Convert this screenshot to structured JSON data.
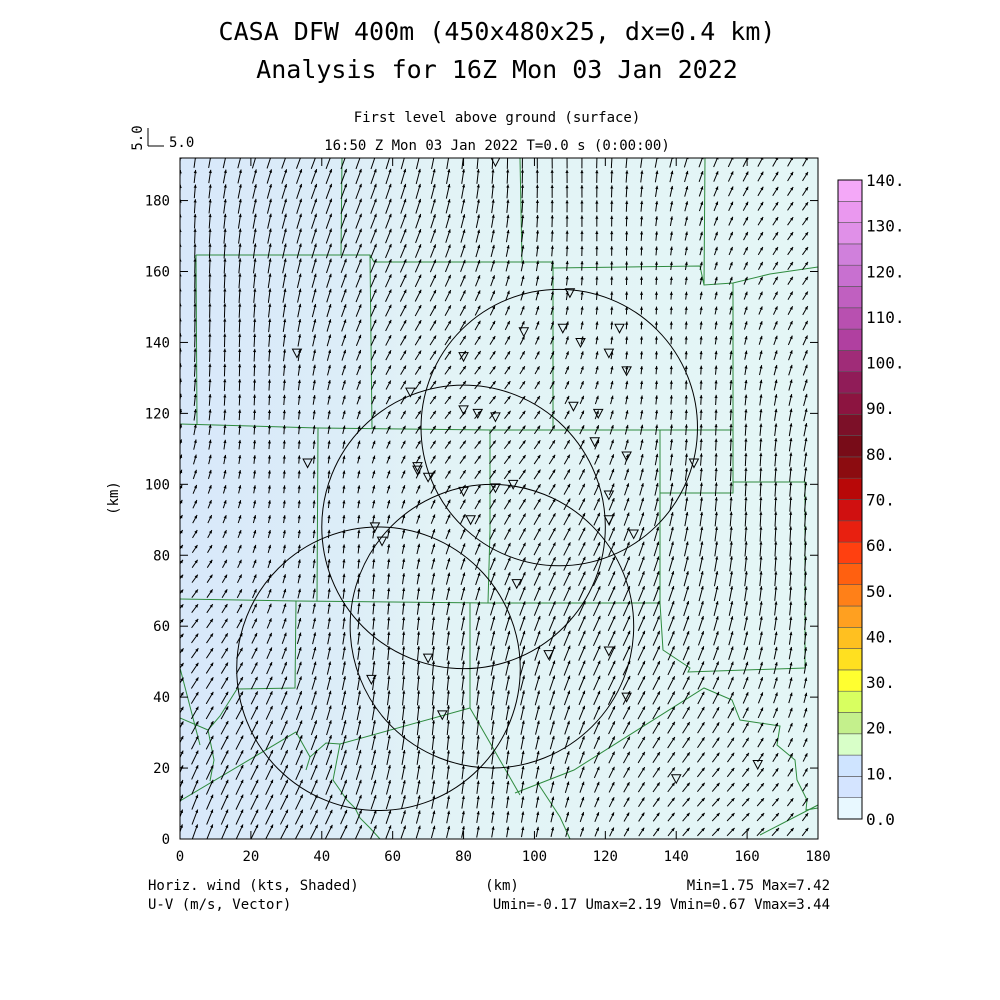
{
  "titles": {
    "line1": "CASA DFW 400m (450x480x25, dx=0.4 km)",
    "line2": "Analysis for 16Z Mon 03 Jan 2022",
    "level": "First level above ground (surface)",
    "time": "16:50 Z Mon 03 Jan 2022    T=0.0 s (0:00:00)"
  },
  "vector_key": {
    "vertical_label": "5.0",
    "horizontal_label": "5.0"
  },
  "axes": {
    "x_label": "(km)",
    "y_label": "(km)",
    "x_range": [
      0,
      180
    ],
    "y_range": [
      0,
      192
    ],
    "x_ticks": [
      "0",
      "20",
      "40",
      "60",
      "80",
      "100",
      "120",
      "140",
      "160",
      "180"
    ],
    "y_ticks": [
      "0",
      "20",
      "40",
      "60",
      "80",
      "100",
      "120",
      "140",
      "160",
      "180"
    ]
  },
  "colorbar": {
    "labels": [
      "0.0",
      "10.",
      "20.",
      "30.",
      "40.",
      "50.",
      "60.",
      "70.",
      "80.",
      "90.",
      "100.",
      "110.",
      "120.",
      "130.",
      "140."
    ],
    "colors": [
      "#e8f8ff",
      "#d4e4ff",
      "#cfe4ff",
      "#d8ffc8",
      "#c4f08c",
      "#d8ff60",
      "#ffff30",
      "#ffe020",
      "#ffc020",
      "#ffa020",
      "#ff8018",
      "#ff6010",
      "#ff4010",
      "#e82010",
      "#d01010",
      "#b80808",
      "#8c0c10",
      "#780c18",
      "#7c1028",
      "#8c1440",
      "#901c58",
      "#a02c78",
      "#b040a0",
      "#b850b0",
      "#c060c0",
      "#c870d0",
      "#d080dc",
      "#e090e8",
      "#ea98ef",
      "#f4a8f8"
    ]
  },
  "footer": {
    "left1": "Horiz. wind (kts, Shaded)",
    "left2": "U-V (m/s, Vector)",
    "center": "(km)",
    "right1": "Min=1.75 Max=7.42",
    "right2": "Umin=-0.17 Umax=2.19 Vmin=0.67 Vmax=3.44"
  },
  "radars": [
    {
      "center_km": [
        107,
        116
      ],
      "radius_km": 39
    },
    {
      "center_km": [
        80,
        88
      ],
      "radius_km": 40
    },
    {
      "center_km": [
        88,
        60
      ],
      "radius_km": 40
    },
    {
      "center_km": [
        56,
        48
      ],
      "radius_km": 40
    }
  ],
  "stations_km": [
    [
      89,
      191
    ],
    [
      110,
      154
    ],
    [
      108,
      144
    ],
    [
      97,
      143
    ],
    [
      124,
      144
    ],
    [
      113,
      140
    ],
    [
      33,
      137
    ],
    [
      80,
      136
    ],
    [
      121,
      137
    ],
    [
      126,
      132
    ],
    [
      65,
      126
    ],
    [
      80,
      121
    ],
    [
      84,
      120
    ],
    [
      89,
      119
    ],
    [
      111,
      122
    ],
    [
      118,
      120
    ],
    [
      117,
      112
    ],
    [
      36,
      106
    ],
    [
      67,
      105
    ],
    [
      67,
      104
    ],
    [
      70,
      102
    ],
    [
      126,
      108
    ],
    [
      145,
      106
    ],
    [
      80,
      98
    ],
    [
      89,
      99
    ],
    [
      94,
      100
    ],
    [
      121,
      97
    ],
    [
      82,
      90
    ],
    [
      121,
      90
    ],
    [
      128,
      86
    ],
    [
      55,
      88
    ],
    [
      57,
      84
    ],
    [
      95,
      72
    ],
    [
      70,
      51
    ],
    [
      104,
      52
    ],
    [
      121,
      53
    ],
    [
      54,
      45
    ],
    [
      126,
      40
    ],
    [
      74,
      35
    ],
    [
      140,
      17
    ],
    [
      163,
      21
    ]
  ]
}
